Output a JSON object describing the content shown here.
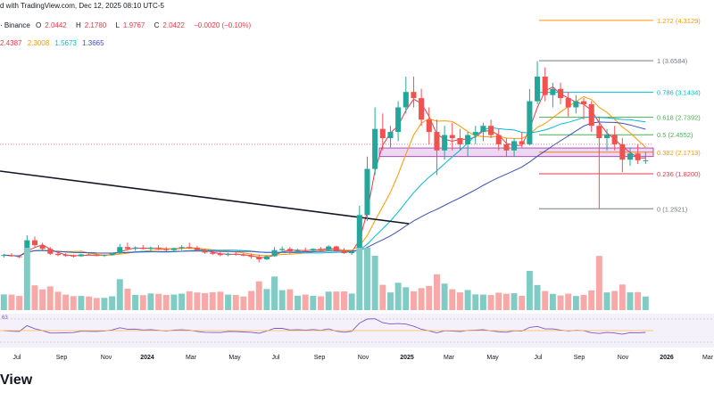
{
  "header": {
    "published": "d with TradingView.com, Dec 12, 2025 08:10 UTC-5",
    "exchange": "· Binance",
    "o_label": "O",
    "o_value": "2.0442",
    "h_label": "H",
    "h_value": "2.1780",
    "l_label": "L",
    "l_value": "1.9767",
    "c_label": "C",
    "c_value": "2.0422",
    "change": "−0.0020 (−0.10%)",
    "ma_values": [
      "2.4387",
      "2.3008",
      "1.5673",
      "1.3665"
    ],
    "rsi_label": "63",
    "footer_brand": "View"
  },
  "colors": {
    "up": "#26a69a",
    "down": "#ef5350",
    "ma1": "#f23645",
    "ma2": "#ff9800",
    "ma3": "#00bcd4",
    "ma4": "#3f51b5",
    "rsi": "#7e57c2",
    "trendline": "#131722"
  },
  "chart_data": {
    "type": "candlestick",
    "symbol_pair_exchange": "Binance",
    "x_ticks": [
      "Jul",
      "Sep",
      "Nov",
      "2024",
      "Mar",
      "May",
      "Jul",
      "Sep",
      "Nov",
      "2025",
      "Mar",
      "May",
      "Jul",
      "Sep",
      "Nov",
      "2026",
      "Mar"
    ],
    "price_range": [
      0.3,
      4.5
    ],
    "fib_levels": [
      {
        "ratio": "1.272",
        "price": 4.3129,
        "label": "1.272 (4.3129)",
        "color": "#ff9800"
      },
      {
        "ratio": "1",
        "price": 3.6584,
        "label": "1 (3.6584)",
        "color": "#787b86"
      },
      {
        "ratio": "0.786",
        "price": 3.1434,
        "label": "0.786 (3.1434)",
        "color": "#00bcd4"
      },
      {
        "ratio": "0.618",
        "price": 2.7392,
        "label": "0.618 (2.7392)",
        "color": "#4caf50"
      },
      {
        "ratio": "0.5",
        "price": 2.4552,
        "label": "0.5 (2.4552)",
        "color": "#4caf50"
      },
      {
        "ratio": "0.382",
        "price": 2.1713,
        "label": "0.382 (2.1713)",
        "color": "#ff9800"
      },
      {
        "ratio": "0.236",
        "price": 1.82,
        "label": "0.236 (1.8200)",
        "color": "#f23645"
      },
      {
        "ratio": "0",
        "price": 1.2521,
        "label": "0 (1.2521)",
        "color": "#787b86"
      }
    ],
    "candles_weekly_approx": [
      [
        0.49,
        0.52,
        0.46,
        0.5
      ],
      [
        0.5,
        0.53,
        0.47,
        0.48
      ],
      [
        0.48,
        0.5,
        0.45,
        0.47
      ],
      [
        0.47,
        0.82,
        0.46,
        0.74
      ],
      [
        0.74,
        0.8,
        0.63,
        0.66
      ],
      [
        0.66,
        0.7,
        0.58,
        0.6
      ],
      [
        0.6,
        0.63,
        0.5,
        0.52
      ],
      [
        0.52,
        0.56,
        0.48,
        0.5
      ],
      [
        0.5,
        0.53,
        0.47,
        0.49
      ],
      [
        0.49,
        0.51,
        0.46,
        0.48
      ],
      [
        0.48,
        0.52,
        0.47,
        0.51
      ],
      [
        0.51,
        0.54,
        0.49,
        0.5
      ],
      [
        0.5,
        0.52,
        0.48,
        0.49
      ],
      [
        0.49,
        0.51,
        0.47,
        0.5
      ],
      [
        0.5,
        0.54,
        0.49,
        0.53
      ],
      [
        0.53,
        0.68,
        0.52,
        0.63
      ],
      [
        0.63,
        0.7,
        0.58,
        0.6
      ],
      [
        0.6,
        0.64,
        0.57,
        0.62
      ],
      [
        0.62,
        0.66,
        0.59,
        0.6
      ],
      [
        0.6,
        0.64,
        0.56,
        0.62
      ],
      [
        0.62,
        0.66,
        0.58,
        0.6
      ],
      [
        0.6,
        0.63,
        0.56,
        0.58
      ],
      [
        0.58,
        0.62,
        0.55,
        0.61
      ],
      [
        0.61,
        0.66,
        0.58,
        0.63
      ],
      [
        0.63,
        0.7,
        0.6,
        0.62
      ],
      [
        0.62,
        0.65,
        0.56,
        0.58
      ],
      [
        0.58,
        0.6,
        0.52,
        0.54
      ],
      [
        0.54,
        0.58,
        0.5,
        0.52
      ],
      [
        0.52,
        0.56,
        0.48,
        0.5
      ],
      [
        0.5,
        0.54,
        0.48,
        0.52
      ],
      [
        0.52,
        0.55,
        0.49,
        0.51
      ],
      [
        0.51,
        0.53,
        0.48,
        0.49
      ],
      [
        0.49,
        0.52,
        0.44,
        0.47
      ],
      [
        0.47,
        0.51,
        0.38,
        0.43
      ],
      [
        0.43,
        0.5,
        0.42,
        0.48
      ],
      [
        0.48,
        0.63,
        0.47,
        0.58
      ],
      [
        0.58,
        0.64,
        0.54,
        0.6
      ],
      [
        0.6,
        0.63,
        0.52,
        0.56
      ],
      [
        0.56,
        0.6,
        0.54,
        0.58
      ],
      [
        0.58,
        0.62,
        0.55,
        0.57
      ],
      [
        0.57,
        0.61,
        0.55,
        0.6
      ],
      [
        0.6,
        0.63,
        0.57,
        0.58
      ],
      [
        0.58,
        0.66,
        0.57,
        0.64
      ],
      [
        0.64,
        0.65,
        0.55,
        0.57
      ],
      [
        0.57,
        0.61,
        0.52,
        0.53
      ],
      [
        0.53,
        0.57,
        0.5,
        0.55
      ],
      [
        0.55,
        1.3,
        0.54,
        1.15
      ],
      [
        1.15,
        2.1,
        1.05,
        1.9
      ],
      [
        1.9,
        2.9,
        1.8,
        2.55
      ],
      [
        2.55,
        2.8,
        2.2,
        2.4
      ],
      [
        2.4,
        2.6,
        2.25,
        2.5
      ],
      [
        2.5,
        3.0,
        2.35,
        2.9
      ],
      [
        2.9,
        3.4,
        2.8,
        3.15
      ],
      [
        3.15,
        3.4,
        2.9,
        3.05
      ],
      [
        3.05,
        3.2,
        2.6,
        2.7
      ],
      [
        2.7,
        2.9,
        2.3,
        2.5
      ],
      [
        2.5,
        2.7,
        1.8,
        2.2
      ],
      [
        2.2,
        2.6,
        2.05,
        2.45
      ],
      [
        2.45,
        2.65,
        2.2,
        2.4
      ],
      [
        2.4,
        2.55,
        2.2,
        2.3
      ],
      [
        2.3,
        2.5,
        2.1,
        2.45
      ],
      [
        2.45,
        2.6,
        2.3,
        2.5
      ],
      [
        2.5,
        2.65,
        2.35,
        2.6
      ],
      [
        2.6,
        2.7,
        2.4,
        2.45
      ],
      [
        2.45,
        2.55,
        2.2,
        2.3
      ],
      [
        2.3,
        2.4,
        2.1,
        2.2
      ],
      [
        2.2,
        2.4,
        2.1,
        2.35
      ],
      [
        2.35,
        2.5,
        2.25,
        2.3
      ],
      [
        2.3,
        3.2,
        2.28,
        3.0
      ],
      [
        3.0,
        3.65,
        2.95,
        3.4
      ],
      [
        3.4,
        3.55,
        3.0,
        3.1
      ],
      [
        3.1,
        3.3,
        2.9,
        3.2
      ],
      [
        3.2,
        3.3,
        2.95,
        3.05
      ],
      [
        3.05,
        3.15,
        2.75,
        2.9
      ],
      [
        2.9,
        3.1,
        2.8,
        3.0
      ],
      [
        3.0,
        3.05,
        2.7,
        2.95
      ],
      [
        2.95,
        3.0,
        2.5,
        2.6
      ],
      [
        2.6,
        2.75,
        1.25,
        2.4
      ],
      [
        2.4,
        2.55,
        2.2,
        2.45
      ],
      [
        2.45,
        2.6,
        2.2,
        2.3
      ],
      [
        2.3,
        2.4,
        1.85,
        2.05
      ],
      [
        2.05,
        2.25,
        1.95,
        2.15
      ],
      [
        2.15,
        2.3,
        1.98,
        2.04
      ],
      [
        2.04,
        2.18,
        1.98,
        2.04
      ]
    ]
  }
}
